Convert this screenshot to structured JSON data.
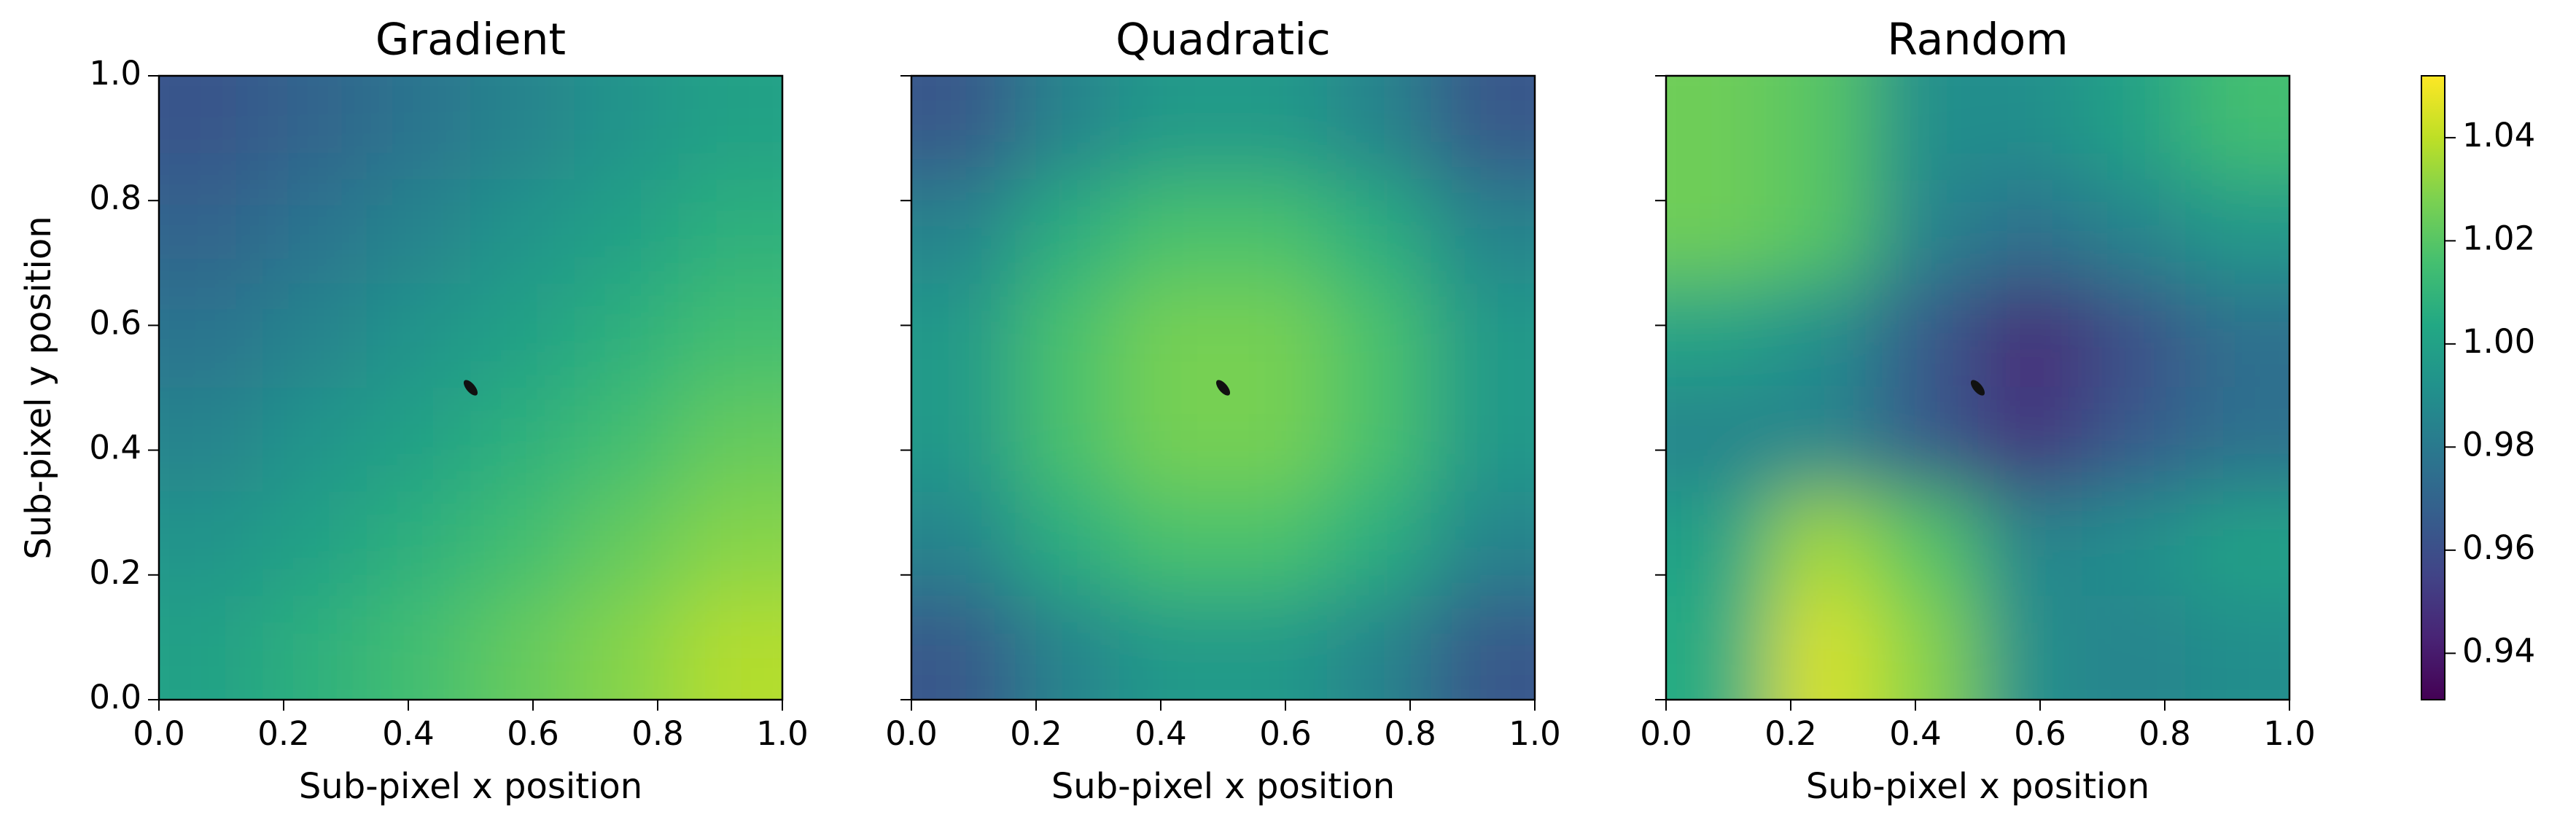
{
  "chart_data": [
    {
      "type": "heatmap",
      "title": "Gradient",
      "xlabel": "Sub-pixel x position",
      "ylabel": "Sub-pixel y position",
      "xlim": [
        0,
        1
      ],
      "ylim": [
        0,
        1
      ],
      "xticks": [
        {
          "value": 0,
          "label": "0.0"
        },
        0.2,
        0.4,
        0.6,
        0.8,
        {
          "value": 1,
          "label": "1.0"
        }
      ],
      "yticks": [
        {
          "value": 0,
          "label": "0.0"
        },
        0.2,
        0.4,
        0.6,
        0.8,
        {
          "value": 1,
          "label": "1.0"
        }
      ],
      "ytick_labels": true,
      "z": [
        [
          0.963,
          0.97,
          0.978,
          0.985,
          0.993,
          1.0
        ],
        [
          0.97,
          0.978,
          0.985,
          0.993,
          1.0,
          1.008
        ],
        [
          0.978,
          0.985,
          0.993,
          1.0,
          1.008,
          1.015
        ],
        [
          0.985,
          0.993,
          1.0,
          1.008,
          1.015,
          1.023
        ],
        [
          0.993,
          1.0,
          1.008,
          1.015,
          1.023,
          1.03
        ],
        [
          1.0,
          1.008,
          1.015,
          1.023,
          1.03,
          1.038
        ]
      ],
      "x": [
        0.5
      ],
      "y": [
        0.5
      ]
    },
    {
      "type": "heatmap",
      "title": "Quadratic",
      "xlabel": "Sub-pixel x position",
      "xlim": [
        0,
        1
      ],
      "ylim": [
        0,
        1
      ],
      "xticks": [
        {
          "value": 0,
          "label": "0.0"
        },
        0.2,
        0.4,
        0.6,
        0.8,
        {
          "value": 1,
          "label": "1.0"
        }
      ],
      "yticks": [
        0,
        0.2,
        0.4,
        0.6,
        0.8,
        1
      ],
      "ytick_labels": false,
      "z": [
        [
          0.964,
          0.985,
          0.996,
          0.996,
          0.985,
          0.964
        ],
        [
          0.985,
          1.006,
          1.017,
          1.017,
          1.006,
          0.985
        ],
        [
          0.996,
          1.017,
          1.027,
          1.027,
          1.017,
          0.996
        ],
        [
          0.996,
          1.017,
          1.027,
          1.027,
          1.017,
          0.996
        ],
        [
          0.985,
          1.006,
          1.017,
          1.017,
          1.006,
          0.985
        ],
        [
          0.964,
          0.985,
          0.996,
          0.996,
          0.985,
          0.964
        ]
      ],
      "x": [
        0.5
      ],
      "y": [
        0.5
      ]
    },
    {
      "type": "heatmap",
      "title": "Random",
      "xlabel": "Sub-pixel x position",
      "xlim": [
        0,
        1
      ],
      "ylim": [
        0,
        1
      ],
      "xticks": [
        {
          "value": 0,
          "label": "0.0"
        },
        0.2,
        0.4,
        0.6,
        0.8,
        {
          "value": 1,
          "label": "1.0"
        }
      ],
      "yticks": [
        0,
        0.2,
        0.4,
        0.6,
        0.8,
        1
      ],
      "ytick_labels": false,
      "z": [
        [
          1.025,
          1.02,
          0.99,
          0.99,
          1.0,
          1.015
        ],
        [
          1.025,
          1.02,
          0.985,
          0.975,
          0.985,
          0.995
        ],
        [
          1.0,
          0.99,
          0.965,
          0.945,
          0.96,
          0.975
        ],
        [
          0.985,
          0.985,
          0.965,
          0.95,
          0.965,
          0.975
        ],
        [
          1.0,
          1.035,
          1.02,
          0.985,
          0.99,
          1.0
        ],
        [
          1.005,
          1.045,
          1.03,
          0.99,
          0.985,
          0.99
        ]
      ],
      "x": [
        0.5
      ],
      "y": [
        0.5
      ]
    }
  ],
  "colorbar": {
    "colormap": "viridis",
    "clim": [
      0.931,
      1.052
    ],
    "cticks": [
      0.94,
      0.96,
      0.98,
      {
        "value": 1,
        "label": "1.00"
      },
      1.02,
      1.04
    ]
  }
}
